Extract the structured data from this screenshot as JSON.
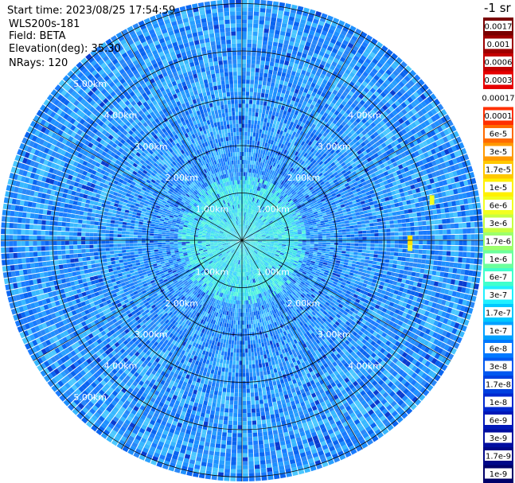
{
  "header": {
    "start_time": "Start time: 2023/08/25 17:54:59",
    "device": "WLS200s-181",
    "field": "Field: BETA",
    "elevation": "Elevation(deg): 35.30",
    "nrays": "NRays: 120"
  },
  "colorbar": {
    "unit_label": "-1 sr",
    "levels": [
      "0.0017",
      "0.001",
      "0.0006",
      "0.0003",
      "0.00017",
      "0.0001",
      "6e-5",
      "3e-5",
      "1.7e-5",
      "1e-5",
      "6e-6",
      "3e-6",
      "1.7e-6",
      "1e-6",
      "6e-7",
      "3e-7",
      "1.7e-7",
      "1e-7",
      "6e-8",
      "3e-8",
      "1.7e-8",
      "1e-8",
      "6e-9",
      "3e-9",
      "1.7e-9",
      "1e-9"
    ],
    "colors": [
      "#7a0000",
      "#9e0000",
      "#c40000",
      "#e60000",
      "#ffffff",
      "#ff3000",
      "#ff6a00",
      "#ff9a00",
      "#ffc800",
      "#fff000",
      "#f2ff20",
      "#c8ff40",
      "#9cff6c",
      "#6cff9c",
      "#40ffcc",
      "#20f0ff",
      "#00c8ff",
      "#00a0ff",
      "#0078ff",
      "#0058f0",
      "#0040e0",
      "#0028d0",
      "#0018b8",
      "#000ea0",
      "#000888",
      "#00006a"
    ]
  },
  "chart_data": {
    "type": "heatmap",
    "projection": "polar PPI",
    "field": "BETA",
    "nrays": 120,
    "rings_km": [
      1,
      2,
      3,
      4,
      5
    ],
    "ring_labels": [
      "1.00km",
      "2.00km",
      "3.00km",
      "4.00km",
      "5.00km"
    ],
    "radial_spokes_deg": 30,
    "max_range_km": 6,
    "values_shown_by_color": true
  }
}
